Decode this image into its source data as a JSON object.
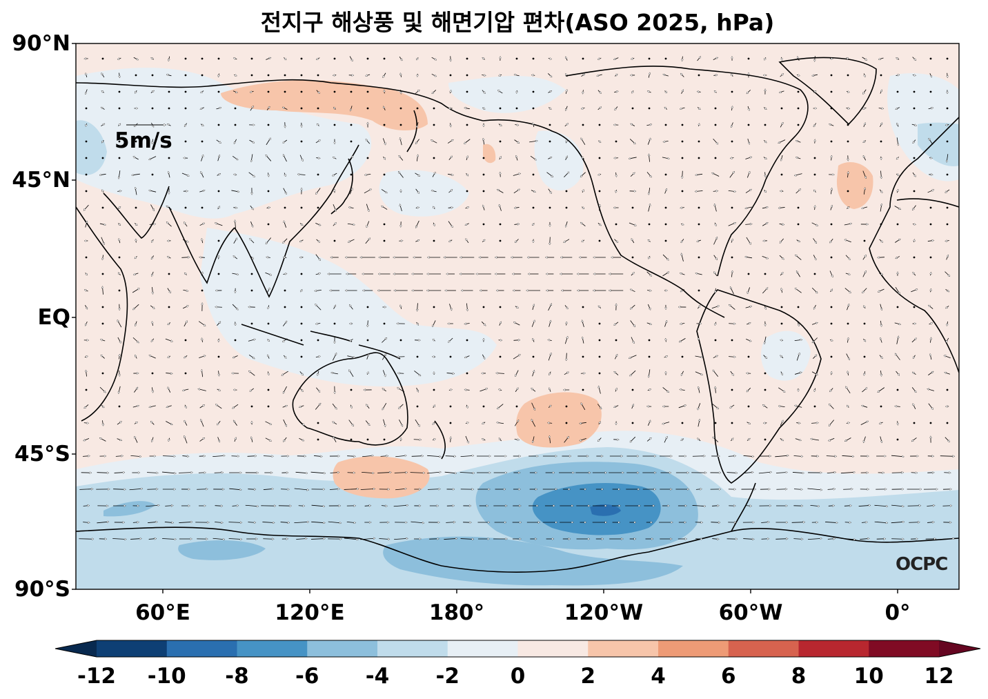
{
  "title": "전지구 해상풍 및 해면기압 편차(ASO 2025, hPa)",
  "latitude_labels": [
    "90°N",
    "45°N",
    "EQ",
    "45°S",
    "90°S"
  ],
  "longitude_labels": [
    "60°E",
    "120°E",
    "180°",
    "120°W",
    "60°W",
    "0°"
  ],
  "reference_vector_label": "5m/s",
  "logo_text": "OCPC",
  "colorbar": {
    "ticks": [
      "-12",
      "-10",
      "-8",
      "-6",
      "-4",
      "-2",
      "0",
      "2",
      "4",
      "6",
      "8",
      "10",
      "12"
    ],
    "colors": [
      "#0e3f74",
      "#2a6fb0",
      "#4693c5",
      "#8dbfdc",
      "#c0dceb",
      "#e7eff5",
      "#f8e9e3",
      "#f7c5aa",
      "#ee9b76",
      "#d7634f",
      "#b8272f",
      "#800b24"
    ],
    "under_color": "#08294f",
    "over_color": "#650621"
  },
  "colors": {
    "land_outline": "#000000",
    "background_field": "#f8e9e3"
  }
}
